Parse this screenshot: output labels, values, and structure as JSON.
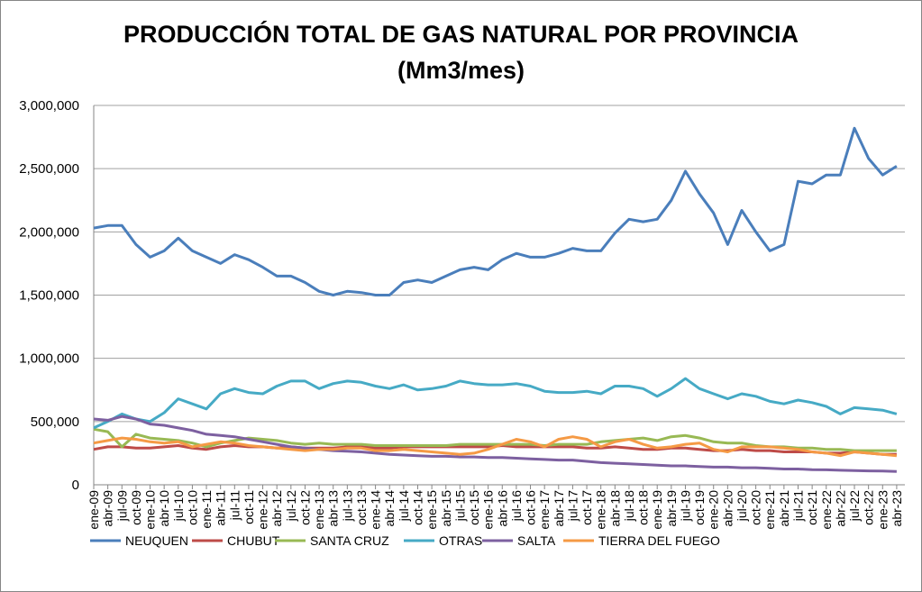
{
  "chart_data": {
    "type": "line",
    "title": "PRODUCCIÓN TOTAL DE GAS NATURAL POR PROVINCIA",
    "subtitle": "(Mm3/mes)",
    "xlabel": "",
    "ylabel": "",
    "ylim": [
      0,
      3000000
    ],
    "yticks": [
      0,
      500000,
      1000000,
      1500000,
      2000000,
      2500000,
      3000000
    ],
    "ytick_labels": [
      "0",
      "500,000",
      "1,000,000",
      "1,500,000",
      "2,000,000",
      "2,500,000",
      "3,000,000"
    ],
    "grid": "horizontal",
    "legend_position": "bottom",
    "categories": [
      "ene-09",
      "abr-09",
      "jul-09",
      "oct-09",
      "ene-10",
      "abr-10",
      "jul-10",
      "oct-10",
      "ene-11",
      "abr-11",
      "jul-11",
      "oct-11",
      "ene-12",
      "abr-12",
      "jul-12",
      "oct-12",
      "ene-13",
      "abr-13",
      "jul-13",
      "oct-13",
      "ene-14",
      "abr-14",
      "jul-14",
      "oct-14",
      "ene-15",
      "abr-15",
      "jul-15",
      "oct-15",
      "ene-16",
      "abr-16",
      "jul-16",
      "oct-16",
      "ene-17",
      "abr-17",
      "jul-17",
      "oct-17",
      "ene-18",
      "abr-18",
      "jul-18",
      "oct-18",
      "ene-19",
      "abr-19",
      "jul-19",
      "oct-19",
      "ene-20",
      "abr-20",
      "jul-20",
      "oct-20",
      "ene-21",
      "abr-21",
      "jul-21",
      "oct-21",
      "ene-22",
      "abr-22",
      "jul-22",
      "oct-22",
      "ene-23",
      "abr-23"
    ],
    "series": [
      {
        "name": "NEUQUEN",
        "color": "#4a7ebb",
        "values": [
          2030000,
          2050000,
          2050000,
          1900000,
          1800000,
          1850000,
          1950000,
          1850000,
          1800000,
          1750000,
          1820000,
          1780000,
          1720000,
          1650000,
          1650000,
          1600000,
          1530000,
          1500000,
          1530000,
          1520000,
          1500000,
          1500000,
          1600000,
          1620000,
          1600000,
          1650000,
          1700000,
          1720000,
          1700000,
          1780000,
          1830000,
          1800000,
          1800000,
          1830000,
          1870000,
          1850000,
          1850000,
          1990000,
          2100000,
          2080000,
          2100000,
          2250000,
          2480000,
          2300000,
          2150000,
          1900000,
          2170000,
          2000000,
          1850000,
          1900000,
          2400000,
          2380000,
          2450000,
          2450000,
          2820000,
          2580000,
          2450000,
          2520000
        ]
      },
      {
        "name": "CHUBUT",
        "color": "#be4b48",
        "values": [
          280000,
          300000,
          300000,
          290000,
          290000,
          300000,
          310000,
          290000,
          280000,
          300000,
          310000,
          300000,
          300000,
          290000,
          300000,
          290000,
          290000,
          290000,
          300000,
          300000,
          290000,
          290000,
          300000,
          300000,
          300000,
          300000,
          300000,
          300000,
          300000,
          310000,
          300000,
          300000,
          300000,
          300000,
          300000,
          290000,
          290000,
          300000,
          290000,
          280000,
          280000,
          290000,
          290000,
          280000,
          270000,
          270000,
          280000,
          270000,
          270000,
          260000,
          260000,
          260000,
          250000,
          250000,
          260000,
          250000,
          240000,
          240000
        ]
      },
      {
        "name": "SANTA CRUZ",
        "color": "#98b954",
        "values": [
          440000,
          420000,
          300000,
          400000,
          370000,
          360000,
          350000,
          330000,
          300000,
          330000,
          350000,
          370000,
          360000,
          350000,
          330000,
          320000,
          330000,
          320000,
          320000,
          320000,
          310000,
          310000,
          310000,
          310000,
          310000,
          310000,
          320000,
          320000,
          320000,
          320000,
          320000,
          320000,
          310000,
          320000,
          320000,
          320000,
          340000,
          350000,
          360000,
          370000,
          350000,
          380000,
          390000,
          370000,
          340000,
          330000,
          330000,
          310000,
          300000,
          300000,
          290000,
          290000,
          280000,
          280000,
          270000,
          270000,
          270000,
          270000
        ]
      },
      {
        "name": "OTRAS",
        "color": "#46aac5",
        "values": [
          450000,
          500000,
          560000,
          520000,
          500000,
          570000,
          680000,
          640000,
          600000,
          720000,
          760000,
          730000,
          720000,
          780000,
          820000,
          820000,
          760000,
          800000,
          820000,
          810000,
          780000,
          760000,
          790000,
          750000,
          760000,
          780000,
          820000,
          800000,
          790000,
          790000,
          800000,
          780000,
          740000,
          730000,
          730000,
          740000,
          720000,
          780000,
          780000,
          760000,
          700000,
          760000,
          840000,
          760000,
          720000,
          680000,
          720000,
          700000,
          660000,
          640000,
          670000,
          650000,
          620000,
          560000,
          610000,
          600000,
          590000,
          560000
        ]
      },
      {
        "name": "SALTA",
        "color": "#7d60a0",
        "values": [
          520000,
          510000,
          540000,
          520000,
          480000,
          470000,
          450000,
          430000,
          400000,
          390000,
          380000,
          360000,
          340000,
          320000,
          300000,
          290000,
          280000,
          270000,
          265000,
          260000,
          250000,
          240000,
          235000,
          230000,
          225000,
          225000,
          220000,
          220000,
          215000,
          215000,
          210000,
          205000,
          200000,
          195000,
          195000,
          185000,
          175000,
          170000,
          165000,
          160000,
          155000,
          150000,
          150000,
          145000,
          140000,
          140000,
          135000,
          135000,
          130000,
          125000,
          125000,
          120000,
          118000,
          115000,
          112000,
          110000,
          108000,
          105000
        ]
      },
      {
        "name": "TIERRA DEL FUEGO",
        "color": "#f59a45",
        "values": [
          330000,
          350000,
          370000,
          360000,
          340000,
          330000,
          340000,
          300000,
          320000,
          340000,
          330000,
          310000,
          300000,
          290000,
          280000,
          270000,
          280000,
          280000,
          290000,
          290000,
          270000,
          270000,
          280000,
          270000,
          260000,
          250000,
          240000,
          250000,
          280000,
          320000,
          360000,
          340000,
          300000,
          360000,
          380000,
          360000,
          300000,
          340000,
          360000,
          320000,
          290000,
          300000,
          320000,
          330000,
          280000,
          260000,
          300000,
          300000,
          300000,
          290000,
          280000,
          260000,
          250000,
          230000,
          260000,
          250000,
          240000,
          230000
        ]
      }
    ]
  }
}
